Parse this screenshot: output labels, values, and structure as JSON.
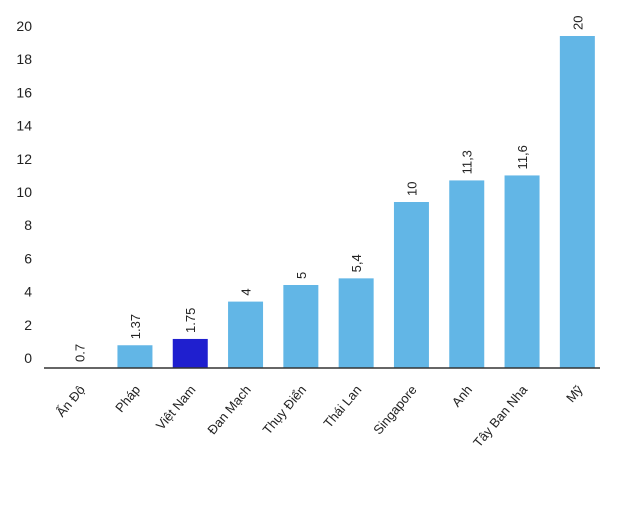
{
  "chart_data": {
    "type": "bar",
    "categories": [
      "Ấn Độ",
      "Pháp",
      "Việt Nam",
      "Đan Mạch",
      "Thụy Điển",
      "Thái Lan",
      "Singapore",
      "Anh",
      "Tây Ban Nha",
      "Mỹ"
    ],
    "values": [
      0.7,
      1.37,
      1.75,
      4,
      5,
      5.4,
      10,
      11.3,
      11.6,
      20
    ],
    "value_labels": [
      "0.7",
      "1.37",
      "1.75",
      "4",
      "5",
      "5,4",
      "10",
      "11,3",
      "11,6",
      "20"
    ],
    "yticks": [
      "0",
      "2",
      "4",
      "6",
      "8",
      "10",
      "12",
      "14",
      "16",
      "18",
      "20"
    ],
    "ylim": [
      0,
      20
    ],
    "title": "",
    "xlabel": "",
    "ylabel": "",
    "grid": false,
    "legend": "none",
    "highlight_category": "Việt Nam",
    "colors": {
      "bar": "#62b6e6",
      "highlight": "#1f1fcf",
      "axis": "#333333",
      "text": "#222222"
    }
  }
}
